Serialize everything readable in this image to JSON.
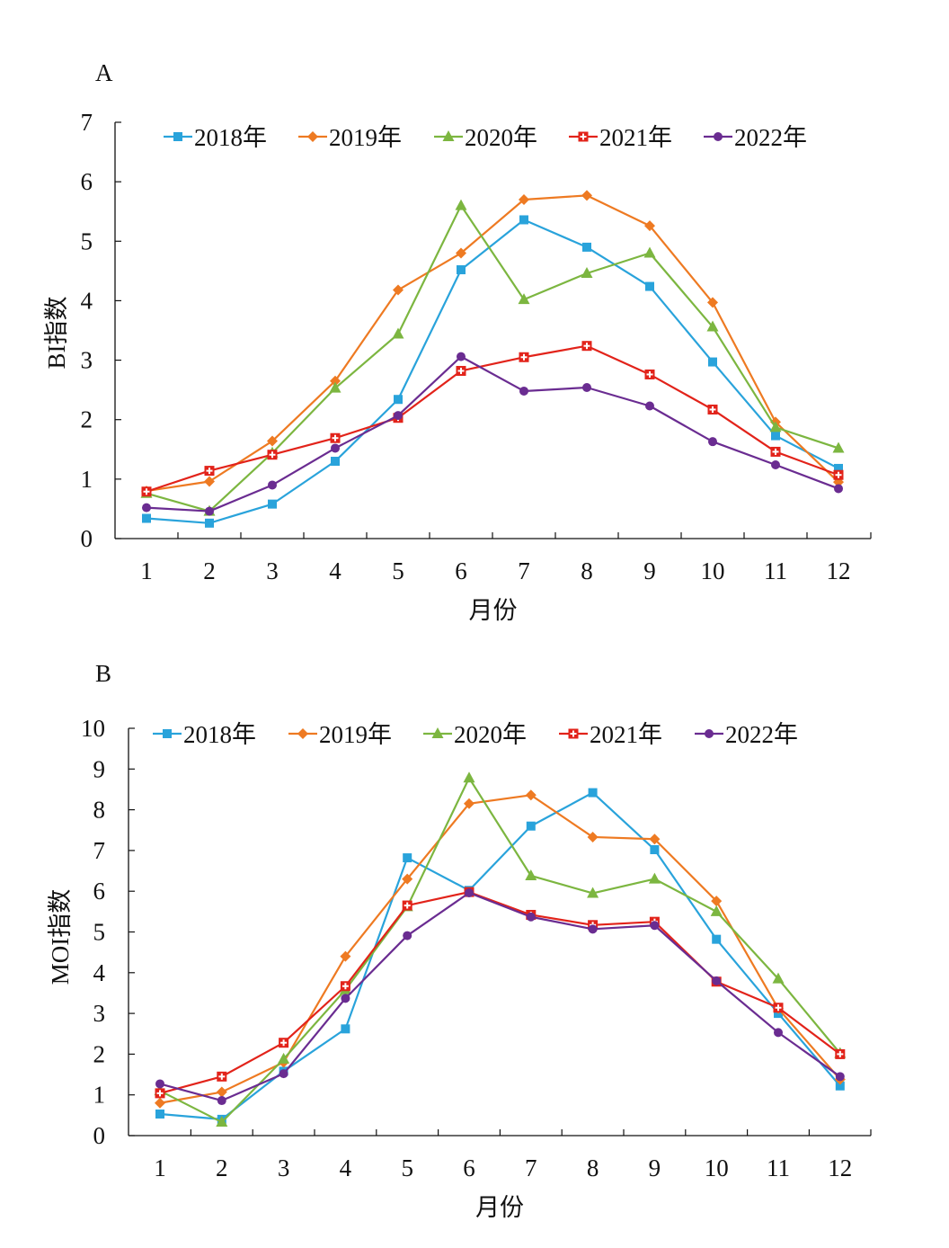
{
  "chart_data": [
    {
      "type": "line",
      "panel_label": "A",
      "xlabel": "月份",
      "ylabel": "BI指数",
      "categories": [
        "1",
        "2",
        "3",
        "4",
        "5",
        "6",
        "7",
        "8",
        "9",
        "10",
        "11",
        "12"
      ],
      "ylim": [
        0,
        7
      ],
      "yticks": [
        "0",
        "1",
        "2",
        "3",
        "4",
        "5",
        "6",
        "7"
      ],
      "legend_position": "top",
      "series": [
        {
          "name": "2018年",
          "color": "#29a3db",
          "marker": "square",
          "values": [
            0.34,
            0.26,
            0.58,
            1.3,
            2.34,
            4.52,
            5.36,
            4.9,
            4.24,
            2.97,
            1.73,
            1.18
          ]
        },
        {
          "name": "2019年",
          "color": "#ee7a22",
          "marker": "diamond",
          "values": [
            0.8,
            0.96,
            1.64,
            2.65,
            4.18,
            4.8,
            5.7,
            5.77,
            5.26,
            3.97,
            1.96,
            0.95
          ]
        },
        {
          "name": "2020年",
          "color": "#7cb640",
          "marker": "triangle",
          "values": [
            0.76,
            0.46,
            1.44,
            2.53,
            3.44,
            5.6,
            4.02,
            4.46,
            4.8,
            3.56,
            1.87,
            1.52
          ]
        },
        {
          "name": "2021年",
          "color": "#e2231a",
          "marker": "square-cross",
          "values": [
            0.79,
            1.14,
            1.41,
            1.69,
            2.03,
            2.82,
            3.05,
            3.24,
            2.76,
            2.17,
            1.46,
            1.07
          ]
        },
        {
          "name": "2022年",
          "color": "#6a2c91",
          "marker": "circle",
          "values": [
            0.52,
            0.46,
            0.9,
            1.52,
            2.07,
            3.06,
            2.48,
            2.54,
            2.23,
            1.63,
            1.24,
            0.84
          ]
        }
      ]
    },
    {
      "type": "line",
      "panel_label": "B",
      "xlabel": "月份",
      "ylabel": "MOI指数",
      "categories": [
        "1",
        "2",
        "3",
        "4",
        "5",
        "6",
        "7",
        "8",
        "9",
        "10",
        "11",
        "12"
      ],
      "ylim": [
        0,
        10
      ],
      "yticks": [
        "0",
        "1",
        "2",
        "3",
        "4",
        "5",
        "6",
        "7",
        "8",
        "9",
        "10"
      ],
      "legend_position": "top",
      "series": [
        {
          "name": "2018年",
          "color": "#29a3db",
          "marker": "square",
          "values": [
            0.53,
            0.4,
            1.58,
            2.62,
            6.82,
            6.02,
            7.6,
            8.42,
            7.02,
            4.82,
            3.0,
            1.22
          ]
        },
        {
          "name": "2019年",
          "color": "#ee7a22",
          "marker": "diamond",
          "values": [
            0.8,
            1.07,
            1.8,
            4.4,
            6.3,
            8.15,
            8.36,
            7.33,
            7.28,
            5.76,
            3.12,
            1.38
          ]
        },
        {
          "name": "2020年",
          "color": "#7cb640",
          "marker": "triangle",
          "values": [
            1.1,
            0.33,
            1.88,
            3.58,
            5.62,
            8.78,
            6.38,
            5.95,
            6.3,
            5.5,
            3.85,
            2.02
          ]
        },
        {
          "name": "2021年",
          "color": "#e2231a",
          "marker": "square-cross",
          "values": [
            1.04,
            1.45,
            2.28,
            3.67,
            5.65,
            5.98,
            5.42,
            5.17,
            5.25,
            3.78,
            3.14,
            2.0
          ]
        },
        {
          "name": "2022年",
          "color": "#6a2c91",
          "marker": "circle",
          "values": [
            1.27,
            0.86,
            1.52,
            3.37,
            4.91,
            5.96,
            5.37,
            5.07,
            5.16,
            3.8,
            2.53,
            1.45
          ]
        }
      ]
    }
  ]
}
